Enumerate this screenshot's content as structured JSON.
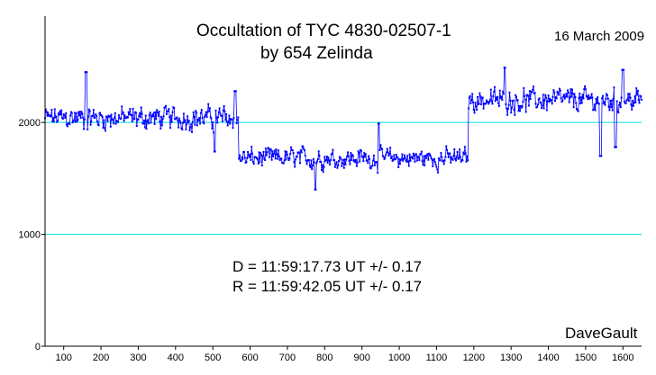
{
  "chart_data": {
    "type": "line",
    "title": "Occultation of TYC 4830-02507-1",
    "subtitle": "by 654 Zelinda",
    "date": "16 March 2009",
    "annotations": {
      "disappearance": "D = 11:59:17.73 UT +/- 0.17",
      "reappearance": "R = 11:59:42.05 UT +/- 0.17"
    },
    "author": "DaveGault",
    "xlim": [
      50,
      1650
    ],
    "ylim": [
      0,
      2950
    ],
    "xticks": [
      100,
      200,
      300,
      400,
      500,
      600,
      700,
      800,
      900,
      1000,
      1100,
      1200,
      1300,
      1400,
      1500,
      1600
    ],
    "yticks": [
      0,
      1000,
      2000
    ],
    "reference_lines": [
      {
        "y": 1000,
        "color": "#00e0e0"
      },
      {
        "y": 2000,
        "color": "#00e0e0"
      }
    ],
    "series_color": "#0000ff",
    "segments": [
      {
        "x_start": 50,
        "x_end": 570,
        "mean": 2040,
        "noise": 170
      },
      {
        "x_start": 570,
        "x_end": 1185,
        "mean": 1680,
        "noise": 150
      },
      {
        "x_start": 1185,
        "x_end": 1650,
        "mean": 2200,
        "noise": 170
      }
    ],
    "highlights": [
      {
        "x": 160,
        "y": 2450
      },
      {
        "x": 505,
        "y": 1740
      },
      {
        "x": 560,
        "y": 2280
      },
      {
        "x": 775,
        "y": 1400
      },
      {
        "x": 945,
        "y": 1990
      },
      {
        "x": 1283,
        "y": 2490
      },
      {
        "x": 1540,
        "y": 1700
      },
      {
        "x": 1580,
        "y": 1780
      },
      {
        "x": 1600,
        "y": 2470
      }
    ]
  }
}
